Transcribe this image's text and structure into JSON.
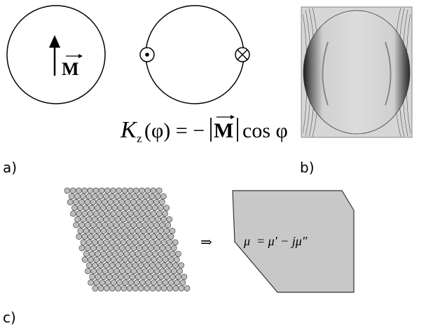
{
  "panel_a": {
    "vector_label": "M",
    "formula": {
      "symbol": "K",
      "subscript": "z",
      "middle": "(φ) = −",
      "magnitude": "M",
      "tail": "cos φ"
    },
    "label": "a)"
  },
  "panel_b": {
    "label": "b)"
  },
  "panel_c": {
    "arrow": "⇒",
    "formula": "μ  = μ′ − jμ″",
    "label": "c)"
  }
}
